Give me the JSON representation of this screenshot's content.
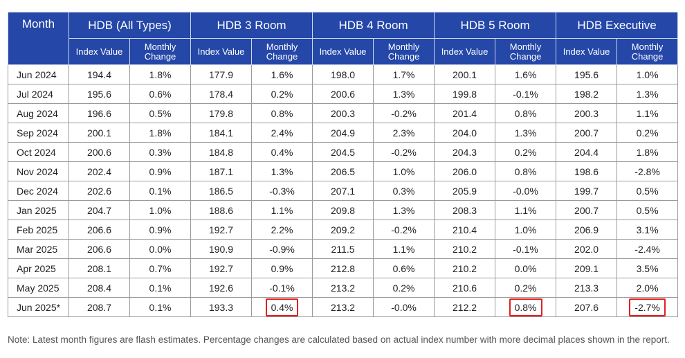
{
  "headers": {
    "month": "Month",
    "groups": [
      "HDB (All Types)",
      "HDB 3 Room",
      "HDB 4 Room",
      "HDB 5 Room",
      "HDB Executive"
    ],
    "sub": [
      "Index Value",
      "Monthly Change"
    ]
  },
  "rows": [
    {
      "month": "Jun 2024",
      "all": [
        "194.4",
        "1.8%"
      ],
      "r3": [
        "177.9",
        "1.6%"
      ],
      "r4": [
        "198.0",
        "1.7%"
      ],
      "r5": [
        "200.1",
        "1.6%"
      ],
      "ex": [
        "195.6",
        "1.0%"
      ]
    },
    {
      "month": "Jul 2024",
      "all": [
        "195.6",
        "0.6%"
      ],
      "r3": [
        "178.4",
        "0.2%"
      ],
      "r4": [
        "200.6",
        "1.3%"
      ],
      "r5": [
        "199.8",
        "-0.1%"
      ],
      "ex": [
        "198.2",
        "1.3%"
      ]
    },
    {
      "month": "Aug 2024",
      "all": [
        "196.6",
        "0.5%"
      ],
      "r3": [
        "179.8",
        "0.8%"
      ],
      "r4": [
        "200.3",
        "-0.2%"
      ],
      "r5": [
        "201.4",
        "0.8%"
      ],
      "ex": [
        "200.3",
        "1.1%"
      ]
    },
    {
      "month": "Sep 2024",
      "all": [
        "200.1",
        "1.8%"
      ],
      "r3": [
        "184.1",
        "2.4%"
      ],
      "r4": [
        "204.9",
        "2.3%"
      ],
      "r5": [
        "204.0",
        "1.3%"
      ],
      "ex": [
        "200.7",
        "0.2%"
      ]
    },
    {
      "month": "Oct 2024",
      "all": [
        "200.6",
        "0.3%"
      ],
      "r3": [
        "184.8",
        "0.4%"
      ],
      "r4": [
        "204.5",
        "-0.2%"
      ],
      "r5": [
        "204.3",
        "0.2%"
      ],
      "ex": [
        "204.4",
        "1.8%"
      ]
    },
    {
      "month": "Nov 2024",
      "all": [
        "202.4",
        "0.9%"
      ],
      "r3": [
        "187.1",
        "1.3%"
      ],
      "r4": [
        "206.5",
        "1.0%"
      ],
      "r5": [
        "206.0",
        "0.8%"
      ],
      "ex": [
        "198.6",
        "-2.8%"
      ]
    },
    {
      "month": "Dec 2024",
      "all": [
        "202.6",
        "0.1%"
      ],
      "r3": [
        "186.5",
        "-0.3%"
      ],
      "r4": [
        "207.1",
        "0.3%"
      ],
      "r5": [
        "205.9",
        "-0.0%"
      ],
      "ex": [
        "199.7",
        "0.5%"
      ]
    },
    {
      "month": "Jan 2025",
      "all": [
        "204.7",
        "1.0%"
      ],
      "r3": [
        "188.6",
        "1.1%"
      ],
      "r4": [
        "209.8",
        "1.3%"
      ],
      "r5": [
        "208.3",
        "1.1%"
      ],
      "ex": [
        "200.7",
        "0.5%"
      ]
    },
    {
      "month": "Feb 2025",
      "all": [
        "206.6",
        "0.9%"
      ],
      "r3": [
        "192.7",
        "2.2%"
      ],
      "r4": [
        "209.2",
        "-0.2%"
      ],
      "r5": [
        "210.4",
        "1.0%"
      ],
      "ex": [
        "206.9",
        "3.1%"
      ]
    },
    {
      "month": "Mar 2025",
      "all": [
        "206.6",
        "0.0%"
      ],
      "r3": [
        "190.9",
        "-0.9%"
      ],
      "r4": [
        "211.5",
        "1.1%"
      ],
      "r5": [
        "210.2",
        "-0.1%"
      ],
      "ex": [
        "202.0",
        "-2.4%"
      ]
    },
    {
      "month": "Apr 2025",
      "all": [
        "208.1",
        "0.7%"
      ],
      "r3": [
        "192.7",
        "0.9%"
      ],
      "r4": [
        "212.8",
        "0.6%"
      ],
      "r5": [
        "210.2",
        "0.0%"
      ],
      "ex": [
        "209.1",
        "3.5%"
      ]
    },
    {
      "month": "May 2025",
      "all": [
        "208.4",
        "0.1%"
      ],
      "r3": [
        "192.6",
        "-0.1%"
      ],
      "r4": [
        "213.2",
        "0.2%"
      ],
      "r5": [
        "210.6",
        "0.2%"
      ],
      "ex": [
        "213.3",
        "2.0%"
      ]
    },
    {
      "month": "Jun 2025*",
      "all": [
        "208.7",
        "0.1%"
      ],
      "r3": [
        "193.3",
        "0.4%"
      ],
      "r4": [
        "213.2",
        "-0.0%"
      ],
      "r5": [
        "212.2",
        "0.8%"
      ],
      "ex": [
        "207.6",
        "-2.7%"
      ]
    }
  ],
  "highlight_color": "#e02020",
  "header_color": "#2447a8",
  "note": "Note: Latest month figures are flash estimates. Percentage changes are calculated based on actual index number with more decimal places shown in the report."
}
